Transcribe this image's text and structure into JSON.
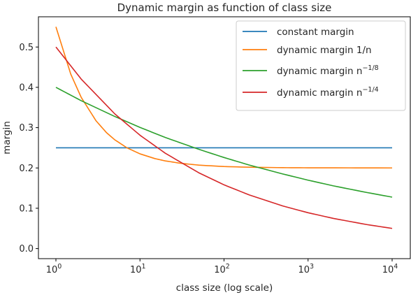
{
  "chart_data": {
    "type": "line",
    "title": "Dynamic margin as function of class size",
    "xlabel": "class size (log scale)",
    "ylabel": "margin",
    "xscale": "log",
    "xlim": [
      1,
      10000
    ],
    "ylim": [
      -0.025,
      0.575
    ],
    "grid": false,
    "legend_position": "top-right",
    "x_ticks": [
      {
        "value": 1,
        "base": "10",
        "exp": "0"
      },
      {
        "value": 10,
        "base": "10",
        "exp": "1"
      },
      {
        "value": 100,
        "base": "10",
        "exp": "2"
      },
      {
        "value": 1000,
        "base": "10",
        "exp": "3"
      },
      {
        "value": 10000,
        "base": "10",
        "exp": "4"
      }
    ],
    "y_ticks": [
      {
        "value": 0.0,
        "label": "0.0"
      },
      {
        "value": 0.1,
        "label": "0.1"
      },
      {
        "value": 0.2,
        "label": "0.2"
      },
      {
        "value": 0.3,
        "label": "0.3"
      },
      {
        "value": 0.4,
        "label": "0.4"
      },
      {
        "value": 0.5,
        "label": "0.5"
      }
    ],
    "series": [
      {
        "name": "constant margin",
        "legend_text": "constant margin",
        "legend_sup": "",
        "color": "#1f77b4",
        "x": [
          1,
          10000
        ],
        "y": [
          0.25,
          0.25
        ]
      },
      {
        "name": "dynamic margin 1/n",
        "legend_text": "dynamic margin 1/n",
        "legend_sup": "",
        "color": "#ff7f0e",
        "x": [
          1,
          1.5,
          2,
          3,
          4,
          5,
          7,
          10,
          15,
          20,
          30,
          50,
          100,
          200,
          500,
          1000,
          10000
        ],
        "y": [
          0.55,
          0.433,
          0.375,
          0.317,
          0.2875,
          0.27,
          0.25,
          0.235,
          0.2233,
          0.2175,
          0.2117,
          0.207,
          0.2035,
          0.2018,
          0.2007,
          0.2004,
          0.2
        ]
      },
      {
        "name": "dynamic margin n^-1/8",
        "legend_text": "dynamic margin n",
        "legend_sup": "−1/8",
        "color": "#2ca02c",
        "x": [
          1,
          2,
          5,
          10,
          20,
          50,
          100,
          200,
          500,
          1000,
          2000,
          5000,
          10000
        ],
        "y": [
          0.4,
          0.3668,
          0.3278,
          0.3006,
          0.2756,
          0.2463,
          0.2259,
          0.2071,
          0.1851,
          0.1697,
          0.1556,
          0.1391,
          0.1276
        ]
      },
      {
        "name": "dynamic margin n^-1/4",
        "legend_text": "dynamic margin n",
        "legend_sup": "−1/4",
        "color": "#d62728",
        "x": [
          1,
          2,
          5,
          10,
          20,
          50,
          100,
          200,
          500,
          1000,
          2000,
          5000,
          10000
        ],
        "y": [
          0.5,
          0.4204,
          0.3344,
          0.2812,
          0.2365,
          0.1881,
          0.1581,
          0.133,
          0.1057,
          0.0889,
          0.0748,
          0.0595,
          0.05
        ]
      }
    ]
  }
}
